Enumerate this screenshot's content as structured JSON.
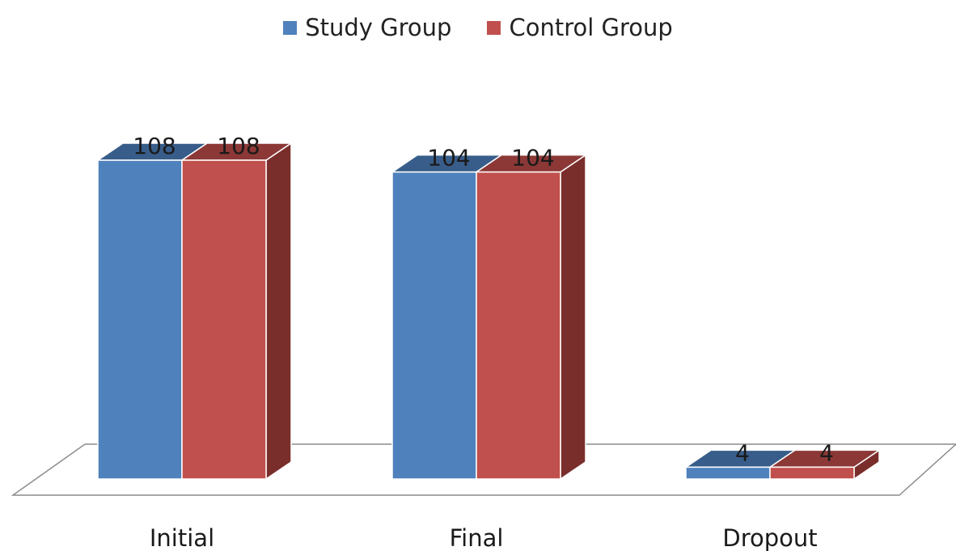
{
  "chart_data": {
    "type": "bar",
    "categories": [
      "Initial",
      "Final",
      "Dropout"
    ],
    "series": [
      {
        "name": "Study Group",
        "values": [
          108,
          104,
          4
        ]
      },
      {
        "name": "Control Group",
        "values": [
          108,
          104,
          4
        ]
      }
    ],
    "data_labels": true,
    "legend_position": "top",
    "three_d": true,
    "grid": false,
    "ylim": [
      0,
      110
    ]
  },
  "colors": {
    "study": "#4f81bd",
    "study_top": "#385d8a",
    "control": "#c0504d",
    "control_top": "#8c3836",
    "control_side": "#7a2e2b",
    "floor_stroke": "#8c8c8c"
  },
  "legend": {
    "study_label": "Study Group",
    "control_label": "Control Group"
  }
}
